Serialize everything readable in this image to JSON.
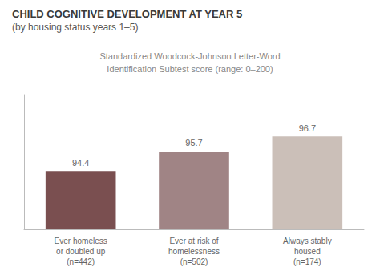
{
  "chart_data": {
    "type": "bar",
    "title": "CHILD COGNITIVE DEVELOPMENT AT YEAR 5",
    "subtitle": "(by housing status years 1–5)",
    "annotations": [
      "Standardized Woodcock-Johnson Letter-Word",
      "Identification Subtest score (range: 0–200)"
    ],
    "categories": [
      "Ever homeless\nor doubled up\n(n=442)",
      "Ever at risk of\nhomelessness\n(n=502)",
      "Always stably\nhoused\n(n=174)"
    ],
    "values": [
      94.4,
      95.7,
      96.7
    ],
    "colors": [
      "#7a4f50",
      "#a08485",
      "#cbbfb8"
    ],
    "ylim": [
      90.5,
      99.5
    ],
    "grid": false,
    "data_labels": true,
    "tick_labels": "x"
  }
}
